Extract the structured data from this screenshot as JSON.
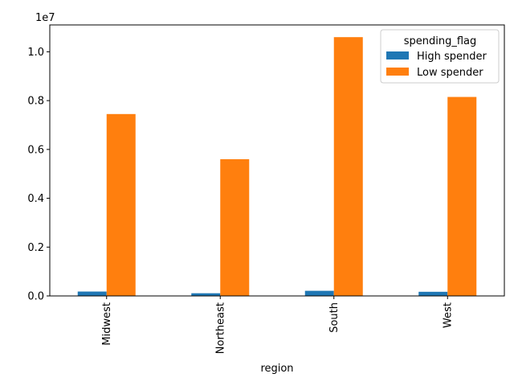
{
  "chart_data": {
    "type": "bar",
    "categories": [
      "Midwest",
      "Northeast",
      "South",
      "West"
    ],
    "series": [
      {
        "name": "High spender",
        "values": [
          180000,
          110000,
          210000,
          170000
        ]
      },
      {
        "name": "Low spender",
        "values": [
          7450000,
          5600000,
          10600000,
          8150000
        ]
      }
    ],
    "xlabel": "region",
    "ylabel": "",
    "ylim": [
      0,
      11100000
    ],
    "yticks": [
      0,
      2000000,
      4000000,
      6000000,
      8000000,
      10000000
    ],
    "ytick_labels": [
      "0.0",
      "0.2",
      "0.4",
      "0.6",
      "0.8",
      "1.0"
    ],
    "offset_label": "1e7",
    "legend": {
      "title": "spending_flag",
      "placement": "top-right"
    },
    "grid": false
  },
  "colors": {
    "High spender": "#1f77b4",
    "Low spender": "#ff7f0e"
  }
}
